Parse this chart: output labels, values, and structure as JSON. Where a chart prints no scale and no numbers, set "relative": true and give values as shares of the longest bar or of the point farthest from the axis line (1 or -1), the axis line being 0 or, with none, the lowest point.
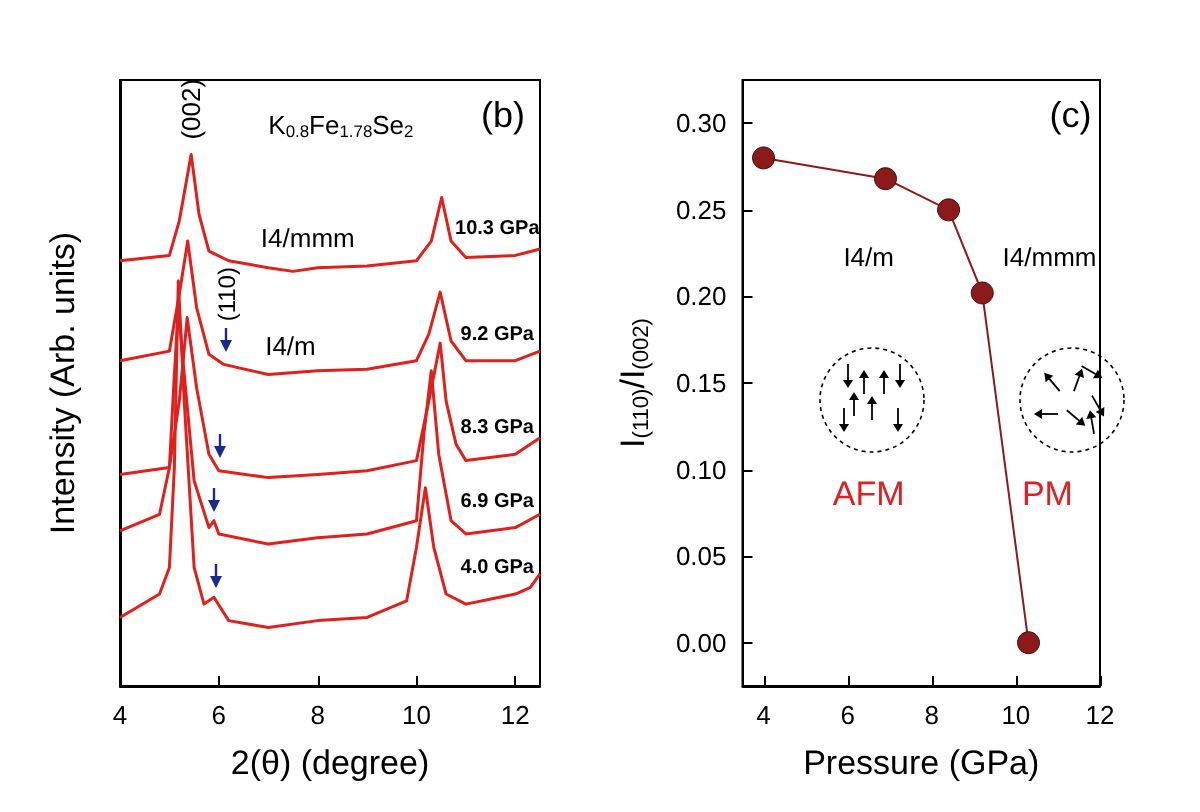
{
  "chart_data": [
    {
      "type": "line",
      "xlabel": "2(θ) (degree)",
      "ylabel": "Intensity (Arb. units)",
      "relative": true,
      "marker": "none",
      "xlim": [
        4,
        12.5
      ],
      "xticks": [
        4,
        6,
        8,
        10,
        12
      ],
      "annotations": [
        "K$_{0.8}$Fe$_{1.78}$Se$_{2}$",
        "(b)",
        "(002)",
        "(110)",
        "I4/mmm",
        "I4/m"
      ],
      "series": [
        {
          "name": "10.3 GPa",
          "color": "#e0201c",
          "x": [
            4,
            5,
            5.2,
            5.44,
            5.6,
            5.8,
            6.2,
            7,
            7.5,
            8,
            9,
            10,
            10.3,
            10.51,
            10.7,
            11,
            12,
            12.5
          ],
          "values": [
            0.8,
            0.81,
            0.875,
            1,
            0.887,
            0.818,
            0.8,
            0.787,
            0.78,
            0.787,
            0.79,
            0.8,
            0.837,
            0.919,
            0.837,
            0.806,
            0.81,
            0.822
          ]
        },
        {
          "name": "9.2 GPa",
          "color": "#e0201c",
          "x": [
            4,
            5,
            5.2,
            5.37,
            5.55,
            5.8,
            6.1,
            7,
            8,
            9,
            10,
            10.25,
            10.48,
            10.7,
            11,
            12,
            12.5
          ],
          "values": [
            0.612,
            0.63,
            0.737,
            0.837,
            0.712,
            0.624,
            0.605,
            0.586,
            0.593,
            0.596,
            0.612,
            0.662,
            0.741,
            0.649,
            0.612,
            0.612,
            0.63
          ]
        },
        {
          "name": "8.3 GPa",
          "color": "#e0201c",
          "x": [
            4,
            5,
            5.2,
            5.36,
            5.55,
            5.8,
            6,
            7,
            8,
            9,
            10,
            10.25,
            10.48,
            10.6,
            10.8,
            11,
            12,
            12.5
          ],
          "values": [
            0.398,
            0.411,
            0.536,
            0.693,
            0.561,
            0.436,
            0.405,
            0.392,
            0.398,
            0.405,
            0.424,
            0.536,
            0.645,
            0.536,
            0.455,
            0.424,
            0.436,
            0.467
          ]
        },
        {
          "name": "6.9 GPa",
          "color": "#e0201c",
          "x": [
            4,
            4.8,
            5,
            5.1,
            5.18,
            5.3,
            5.5,
            5.8,
            5.9,
            6,
            7,
            8,
            9,
            10,
            10.15,
            10.3,
            10.45,
            10.7,
            11,
            12,
            12.5
          ],
          "values": [
            0.292,
            0.323,
            0.411,
            0.586,
            0.712,
            0.586,
            0.386,
            0.298,
            0.311,
            0.286,
            0.267,
            0.279,
            0.286,
            0.311,
            0.474,
            0.593,
            0.436,
            0.311,
            0.286,
            0.298,
            0.323
          ]
        },
        {
          "name": "4.0 GPa",
          "color": "#e0201c",
          "x": [
            4,
            4.8,
            5,
            5.1,
            5.18,
            5.3,
            5.5,
            5.7,
            5.9,
            6.2,
            7,
            8,
            9,
            9.8,
            10,
            10.18,
            10.35,
            10.6,
            11,
            12,
            12.3,
            12.5
          ],
          "values": [
            0.129,
            0.173,
            0.223,
            0.411,
            0.762,
            0.536,
            0.223,
            0.154,
            0.167,
            0.123,
            0.11,
            0.123,
            0.129,
            0.16,
            0.261,
            0.373,
            0.261,
            0.173,
            0.154,
            0.173,
            0.185,
            0.211
          ]
        }
      ]
    },
    {
      "type": "line",
      "xlabel": "Pressure (GPa)",
      "ylabel": "I$_{(110)}$/I$_{(002)}$",
      "marker": "circle",
      "xlim": [
        3.5,
        12
      ],
      "xticks": [
        4,
        6,
        8,
        10,
        12
      ],
      "ylim": [
        -0.025,
        0.325
      ],
      "yticks": [
        {
          "value": 0,
          "label": "0.00"
        },
        {
          "value": 0.05,
          "label": "0.05"
        },
        {
          "value": 0.1,
          "label": "0.10"
        },
        {
          "value": 0.15,
          "label": "0.15"
        },
        {
          "value": 0.2,
          "label": "0.20"
        },
        {
          "value": 0.25,
          "label": "0.25"
        },
        {
          "value": 0.3,
          "label": "0.30"
        }
      ],
      "annotations": [
        "(c)",
        "I4/m",
        "I4/mmm",
        "AFM",
        "PM"
      ],
      "series": [
        {
          "color": "#8b1a1a",
          "x": [
            4,
            6.9,
            8.4,
            9.2,
            10.3
          ],
          "values": [
            0.28,
            0.268,
            0.25,
            0.202,
            0
          ]
        }
      ]
    }
  ]
}
